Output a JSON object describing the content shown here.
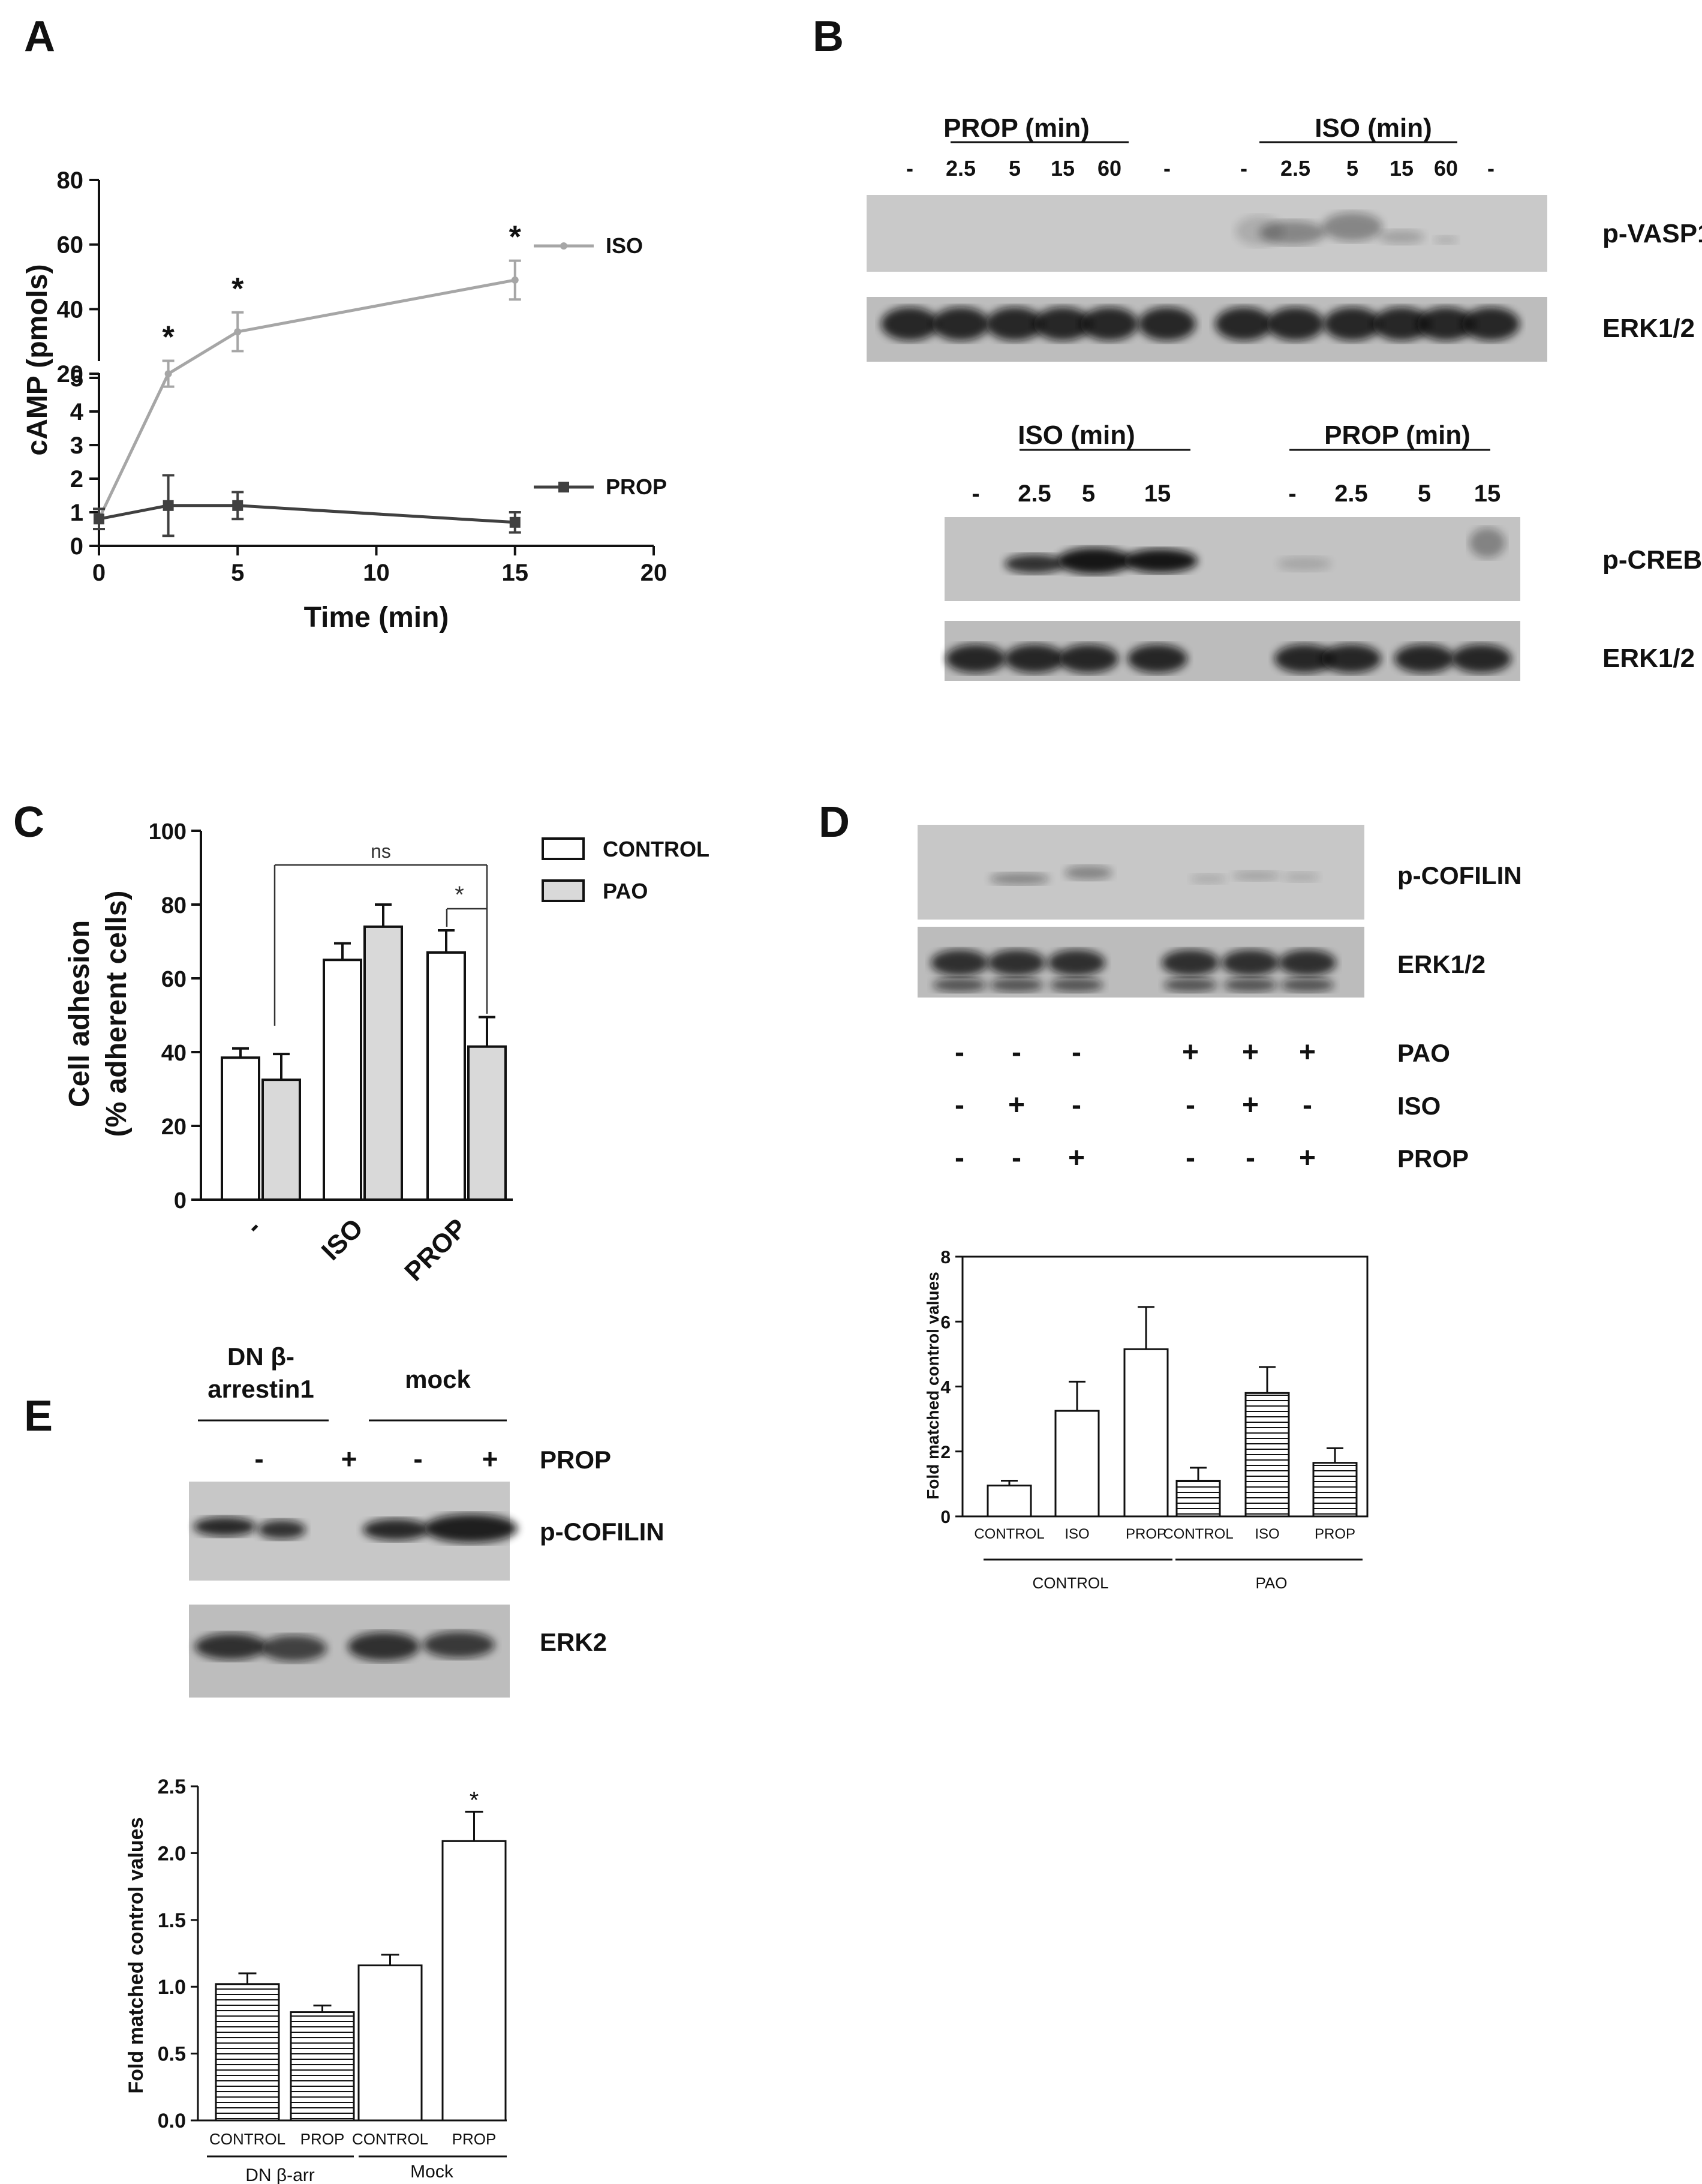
{
  "panel_letters": [
    "A",
    "B",
    "C",
    "D",
    "E"
  ],
  "panel_b": {
    "blot1": {
      "groups": [
        {
          "name": "PROP  (min)",
          "lanes": [
            "-",
            "2.5",
            "5",
            "15",
            "60",
            "-"
          ]
        },
        {
          "name": "ISO  (min)",
          "lanes": [
            "-",
            "2.5",
            "5",
            "15",
            "60",
            "-"
          ]
        }
      ],
      "rows": [
        "p-VASP1",
        "ERK1/2"
      ]
    },
    "blot2": {
      "groups": [
        {
          "name": "ISO  (min)",
          "lanes": [
            "-",
            "2.5",
            "5",
            "15"
          ]
        },
        {
          "name": "PROP  (min)",
          "lanes": [
            "-",
            "2.5",
            "5",
            "15"
          ]
        }
      ],
      "rows": [
        "p-CREB",
        "ERK1/2"
      ]
    }
  },
  "panel_d": {
    "rows": [
      "p-COFILIN",
      "ERK1/2"
    ],
    "treatment_table": [
      {
        "name": "PAO",
        "signs": [
          "-",
          "-",
          "-",
          "+",
          "+",
          "+"
        ]
      },
      {
        "name": "ISO",
        "signs": [
          "-",
          "+",
          "-",
          "-",
          "+",
          "-"
        ]
      },
      {
        "name": "PROP",
        "signs": [
          "-",
          "-",
          "+",
          "-",
          "-",
          "+"
        ]
      }
    ]
  },
  "panel_e": {
    "groups": [
      "DN β-\narrestin1",
      "mock"
    ],
    "prop_label": "PROP",
    "prop_signs": [
      "-",
      "+",
      "-",
      "+"
    ],
    "rows": [
      "p-COFILIN",
      "ERK2"
    ]
  },
  "chart_data": [
    {
      "panel": "A",
      "type": "line",
      "xlabel": "Time (min)",
      "ylabel": "cAMP (pmols)",
      "xlim": [
        0,
        20
      ],
      "x_ticks": [
        0,
        5,
        10,
        15,
        20
      ],
      "y_axis_broken": true,
      "y_ticks_lower": [
        0,
        1,
        2,
        3,
        4,
        5
      ],
      "y_ticks_upper": [
        20,
        40,
        60,
        80
      ],
      "series": [
        {
          "name": "ISO",
          "color": "#a6a6a6",
          "x": [
            0,
            2.5,
            5,
            15
          ],
          "y": [
            0.8,
            20,
            33,
            49
          ],
          "err": [
            0.3,
            4,
            6,
            6
          ],
          "star": [
            false,
            true,
            true,
            true
          ]
        },
        {
          "name": "PROP",
          "color": "#404040",
          "x": [
            0,
            2.5,
            5,
            15
          ],
          "y": [
            0.8,
            1.2,
            1.2,
            0.7
          ],
          "err": [
            0.3,
            0.9,
            0.4,
            0.3
          ]
        }
      ]
    },
    {
      "panel": "C",
      "type": "bar",
      "ylabel": "Cell adhesion\n(% adherent cells)",
      "ylim": [
        0,
        100
      ],
      "y_ticks": [
        0,
        20,
        40,
        60,
        80,
        100
      ],
      "categories": [
        "-",
        "ISO",
        "PROP"
      ],
      "series": [
        {
          "name": "CONTROL",
          "color": "#ffffff",
          "values": [
            38.5,
            65,
            67
          ],
          "err": [
            2.5,
            4.5,
            6
          ]
        },
        {
          "name": "PAO",
          "color": "#d9d9d9",
          "values": [
            32.5,
            74,
            41.5
          ],
          "err": [
            7,
            6,
            8
          ]
        }
      ],
      "annotations": [
        "ns",
        "*"
      ]
    },
    {
      "panel": "D",
      "type": "bar",
      "ylabel": "Fold matched control values",
      "ylim": [
        0,
        8
      ],
      "y_ticks": [
        0,
        2,
        4,
        6,
        8
      ],
      "categories": [
        "CONTROL",
        "ISO",
        "PROP",
        "CONTROL",
        "ISO",
        "PROP"
      ],
      "values": [
        0.95,
        3.25,
        5.15,
        1.1,
        3.8,
        1.65
      ],
      "err": [
        0.15,
        0.9,
        1.3,
        0.4,
        0.8,
        0.45
      ],
      "fill": [
        "open",
        "open",
        "open",
        "striped",
        "striped",
        "striped"
      ],
      "group_labels": [
        "CONTROL",
        "PAO"
      ]
    },
    {
      "panel": "E",
      "type": "bar",
      "ylabel": "Fold matched control values",
      "ylim": [
        0,
        2.5
      ],
      "y_ticks": [
        "0.0",
        "0.5",
        "1.0",
        "1.5",
        "2.0",
        "2.5"
      ],
      "categories": [
        "CONTROL",
        "PROP",
        "CONTROL",
        "PROP"
      ],
      "values": [
        1.02,
        0.81,
        1.16,
        2.09
      ],
      "err": [
        0.08,
        0.05,
        0.08,
        0.22
      ],
      "fill": [
        "striped",
        "striped",
        "open",
        "open"
      ],
      "group_labels": [
        "DN β-arr",
        "Mock"
      ],
      "star": [
        false,
        false,
        false,
        true
      ]
    }
  ]
}
